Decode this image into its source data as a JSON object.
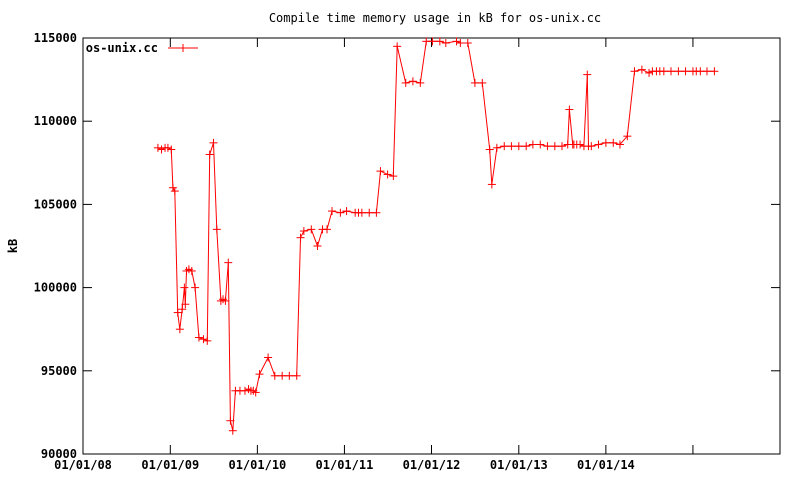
{
  "chart_data": {
    "type": "line",
    "title": "Compile time memory usage in kB for os-unix.cc",
    "xlabel": "",
    "ylabel": "kB",
    "xlim": [
      "2008-01-01",
      "2016-01-01"
    ],
    "ylim": [
      90000,
      115000
    ],
    "x_ticks": [
      "01/01/08",
      "01/01/09",
      "01/01/10",
      "01/01/11",
      "01/01/12",
      "01/01/13",
      "01/01/14"
    ],
    "y_ticks": [
      "90000",
      "95000",
      "100000",
      "105000",
      "110000",
      "115000"
    ],
    "grid": false,
    "legend_position": "top-left",
    "series": [
      {
        "name": "os-unix.cc",
        "color": "#ff0000",
        "x": [
          "2008-11-10",
          "2008-11-25",
          "2008-12-10",
          "2008-12-22",
          "2009-01-05",
          "2009-01-12",
          "2009-01-20",
          "2009-02-01",
          "2009-02-10",
          "2009-02-20",
          "2009-03-01",
          "2009-03-05",
          "2009-03-10",
          "2009-03-20",
          "2009-04-01",
          "2009-04-15",
          "2009-05-01",
          "2009-05-20",
          "2009-06-05",
          "2009-06-15",
          "2009-07-01",
          "2009-07-15",
          "2009-08-01",
          "2009-08-10",
          "2009-08-20",
          "2009-09-01",
          "2009-09-10",
          "2009-09-20",
          "2009-10-01",
          "2009-10-20",
          "2009-11-10",
          "2009-11-25",
          "2009-12-05",
          "2009-12-15",
          "2009-12-25",
          "2010-01-10",
          "2010-02-15",
          "2010-03-15",
          "2010-04-15",
          "2010-05-15",
          "2010-06-15",
          "2010-07-01",
          "2010-07-15",
          "2010-08-15",
          "2010-09-10",
          "2010-10-01",
          "2010-10-20",
          "2010-11-10",
          "2010-12-15",
          "2011-01-10",
          "2011-02-15",
          "2011-03-01",
          "2011-03-15",
          "2011-04-15",
          "2011-05-15",
          "2011-06-01",
          "2011-07-01",
          "2011-07-25",
          "2011-08-10",
          "2011-09-15",
          "2011-10-15",
          "2011-11-15",
          "2011-12-10",
          "2012-01-05",
          "2012-02-05",
          "2012-03-01",
          "2012-04-15",
          "2012-05-01",
          "2012-06-01",
          "2012-07-01",
          "2012-08-01",
          "2012-09-01",
          "2012-09-10",
          "2012-10-01",
          "2012-11-01",
          "2012-12-01",
          "2013-01-01",
          "2013-02-01",
          "2013-03-01",
          "2013-04-01",
          "2013-05-01",
          "2013-06-01",
          "2013-07-01",
          "2013-07-25",
          "2013-08-01",
          "2013-08-15",
          "2013-08-20",
          "2013-09-01",
          "2013-09-15",
          "2013-10-01",
          "2013-10-15",
          "2013-10-20",
          "2013-11-01",
          "2013-12-01",
          "2014-01-01",
          "2014-02-01",
          "2014-03-01",
          "2014-04-01",
          "2014-05-01",
          "2014-06-01",
          "2014-07-01",
          "2014-07-15",
          "2014-08-01",
          "2014-08-15",
          "2014-09-01",
          "2014-10-01",
          "2014-11-01",
          "2014-12-01",
          "2015-01-01",
          "2015-01-15",
          "2015-02-01",
          "2015-03-01",
          "2015-04-01"
        ],
        "y": [
          108400,
          108300,
          108400,
          108400,
          108300,
          106000,
          105800,
          98500,
          97500,
          98700,
          100000,
          99000,
          101000,
          101100,
          101000,
          100000,
          97000,
          96900,
          96800,
          108000,
          108700,
          103500,
          99200,
          99300,
          99200,
          101500,
          92000,
          91400,
          93800,
          93800,
          93800,
          93900,
          93800,
          93800,
          93700,
          94800,
          95800,
          94700,
          94700,
          94700,
          94700,
          103000,
          103400,
          103500,
          102500,
          103500,
          103500,
          104600,
          104500,
          104600,
          104500,
          104500,
          104500,
          104500,
          104500,
          107000,
          106800,
          106700,
          114500,
          112300,
          112400,
          112300,
          114800,
          114800,
          114800,
          114700,
          114800,
          114700,
          114700,
          112300,
          112300,
          108300,
          106200,
          108400,
          108500,
          108500,
          108500,
          108500,
          108600,
          108600,
          108500,
          108500,
          108500,
          108600,
          110700,
          108600,
          108600,
          108600,
          108600,
          108500,
          112800,
          108500,
          108500,
          108600,
          108700,
          108700,
          108600,
          109100,
          113000,
          113100,
          112900,
          113000,
          113000,
          113000,
          113000,
          113000,
          113000,
          113000,
          113000,
          113000,
          113000,
          113000,
          113000
        ]
      }
    ]
  }
}
